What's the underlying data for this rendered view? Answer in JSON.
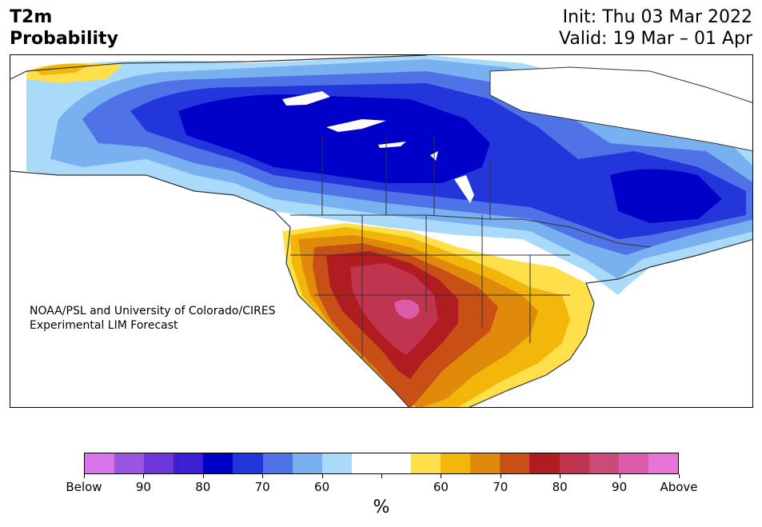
{
  "title": {
    "line1": "T2m",
    "line2": "Probability"
  },
  "info": {
    "init": "Init: Thu 03 Mar 2022",
    "valid": "Valid: 19 Mar – 01 Apr"
  },
  "credit": {
    "line1": "NOAA/PSL and University of Colorado/CIRES",
    "line2": "Experimental LIM Forecast"
  },
  "colorbar": {
    "colors": [
      "#d674ea",
      "#9b55e0",
      "#6c36d8",
      "#3a1fd4",
      "#0000c8",
      "#2336dc",
      "#4f72e6",
      "#78b0f0",
      "#a9dafa",
      "#ffffff",
      "#ffffff",
      "#ffe04a",
      "#f2b60a",
      "#e08a0c",
      "#c85016",
      "#b01c20",
      "#c03450",
      "#cc4a7a",
      "#da5caa",
      "#e874d8"
    ],
    "labels": [
      "Below",
      "90",
      "80",
      "70",
      "60",
      "60",
      "70",
      "80",
      "90",
      "Above"
    ],
    "unit": "%"
  },
  "legend_colors": {
    "below_strong": "#0000c8",
    "above_strong": "#b01c20",
    "land_outline": "#333333"
  }
}
